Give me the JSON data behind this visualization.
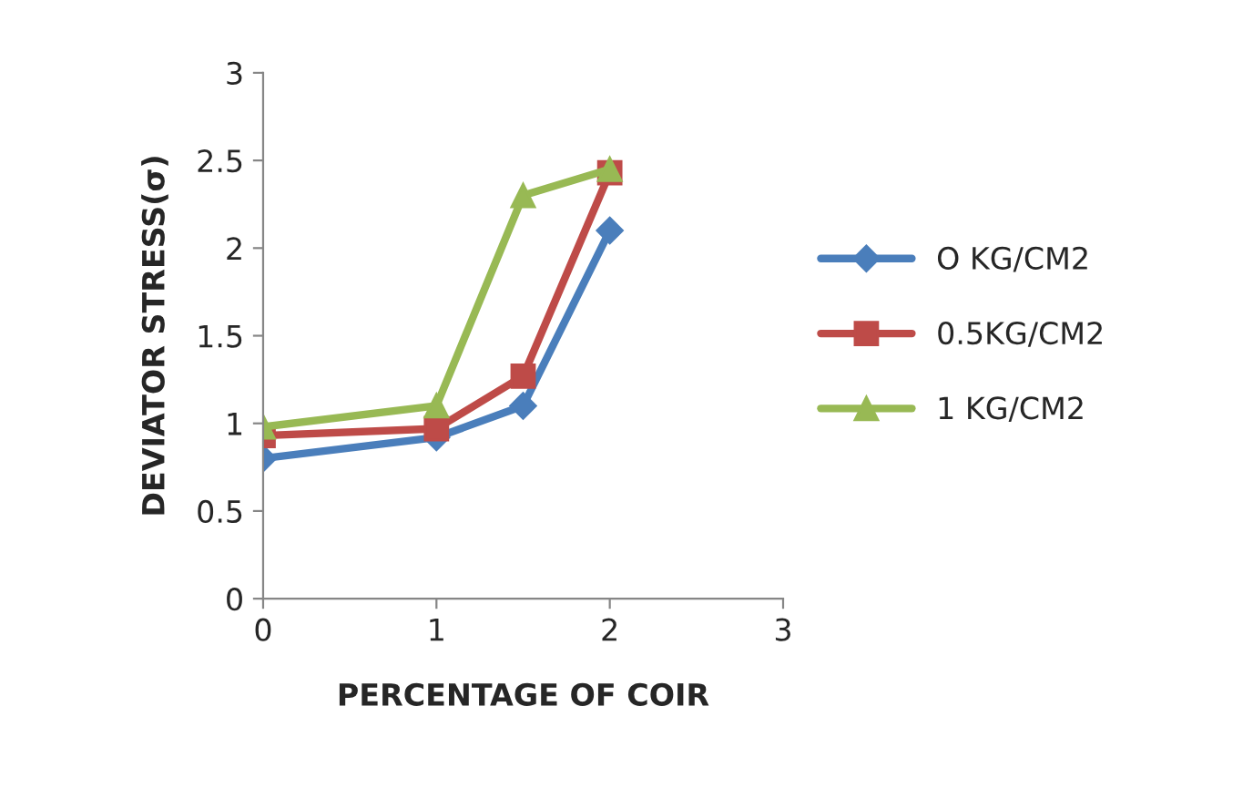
{
  "chart_data": {
    "type": "line",
    "xlabel": "PERCENTAGE OF COIR",
    "ylabel": "DEVIATOR STRESS(σ)",
    "x": [
      0,
      1,
      1.5,
      2
    ],
    "series": [
      {
        "name": "O KG/CM2",
        "color": "#4a7ebb",
        "marker": "diamond",
        "values": [
          0.8,
          0.92,
          1.1,
          2.1
        ]
      },
      {
        "name": "0.5KG/CM2",
        "color": "#be4b48",
        "marker": "square",
        "values": [
          0.93,
          0.97,
          1.27,
          2.43
        ]
      },
      {
        "name": "1 KG/CM2",
        "color": "#98b954",
        "marker": "triangle",
        "values": [
          0.98,
          1.1,
          2.3,
          2.45
        ]
      }
    ],
    "xlim": [
      0,
      3
    ],
    "xticks": [
      0,
      1,
      2,
      3
    ],
    "ylim": [
      0,
      3
    ],
    "yticks": [
      0,
      0.5,
      1,
      1.5,
      2,
      2.5,
      3
    ],
    "grid": false,
    "legend": "right",
    "line_style": "solid"
  }
}
